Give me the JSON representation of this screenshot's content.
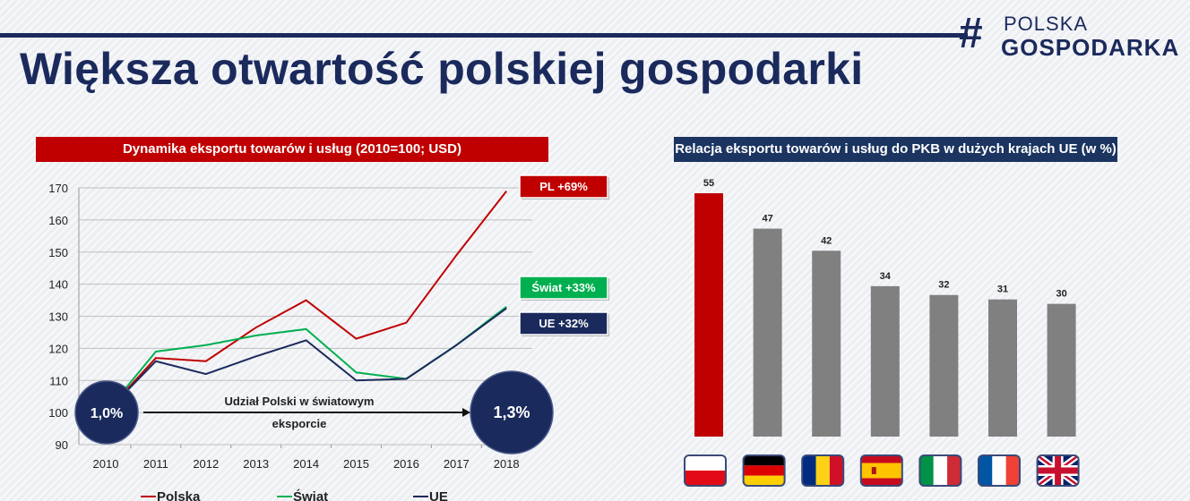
{
  "page": {
    "title": "Większa otwartość polskiej gospodarki",
    "logo": {
      "hash": "#",
      "line1": "POLSKA",
      "line2": "GOSPODARKA"
    }
  },
  "colors": {
    "navy": "#1b2a5c",
    "red": "#c00000",
    "green": "#00b050",
    "gray": "#808080"
  },
  "chart_data": [
    {
      "type": "line",
      "title": "Dynamika eksportu towarów i usług (2010=100; USD)",
      "x": [
        "2010",
        "2011",
        "2012",
        "2013",
        "2014",
        "2015",
        "2016",
        "2017",
        "2018"
      ],
      "yticks": [
        "90",
        "100",
        "110",
        "120",
        "130",
        "140",
        "150",
        "160",
        "170"
      ],
      "ylim": [
        90,
        170
      ],
      "grid": true,
      "legend_placement": "bottom",
      "series": [
        {
          "name": "Polska",
          "color": "#c00000",
          "values": [
            100,
            117,
            116,
            126.5,
            135,
            123,
            128,
            149,
            169
          ]
        },
        {
          "name": "Świat",
          "color": "#00b050",
          "values": [
            100,
            119,
            121,
            124,
            126,
            112.5,
            110.5,
            121,
            133
          ]
        },
        {
          "name": "UE",
          "color": "#1b2a5c",
          "values": [
            100,
            116,
            112,
            117.5,
            122.5,
            110,
            110.5,
            121,
            132.5
          ]
        }
      ],
      "annotations": {
        "pl": "PL +69%",
        "swiat": "Świat +33%",
        "ue": "UE +32%",
        "share_start": "1,0%",
        "share_end": "1,3%",
        "share_line1": "Udział Polski w światowym",
        "share_line2": "eksporcie"
      }
    },
    {
      "type": "bar",
      "title": "Relacja eksportu  towarów i usług do PKB w dużych krajach UE (w %)",
      "categories": [
        "Polska",
        "Niemcy",
        "Rumunia",
        "Hiszpania",
        "Włochy",
        "Francja",
        "Wielka Brytania"
      ],
      "values": [
        55,
        47,
        42,
        34,
        32,
        31,
        30
      ],
      "value_labels": [
        "55",
        "47",
        "42",
        "34",
        "32",
        "31",
        "30"
      ],
      "bar_colors": [
        "#c00000",
        "#808080",
        "#808080",
        "#808080",
        "#808080",
        "#808080",
        "#808080"
      ],
      "flag_icons": [
        "flag-poland-icon",
        "flag-germany-icon",
        "flag-romania-icon",
        "flag-spain-icon",
        "flag-italy-icon",
        "flag-france-icon",
        "flag-uk-icon"
      ]
    }
  ]
}
